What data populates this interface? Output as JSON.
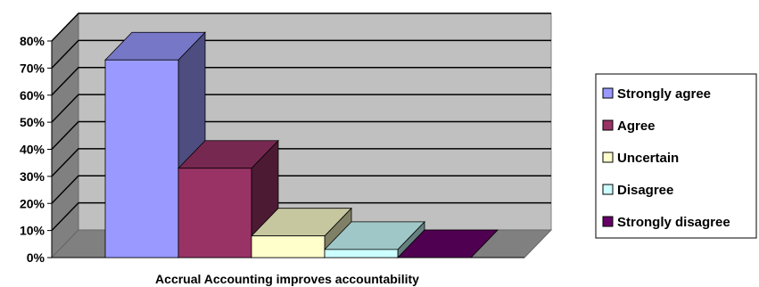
{
  "chart_data": {
    "type": "bar",
    "three_d": true,
    "xlabel": "Accrual Accounting improves accountability",
    "ylabel": "",
    "ylim": [
      0,
      80
    ],
    "yticks": [
      "0%",
      "10%",
      "20%",
      "30%",
      "40%",
      "50%",
      "60%",
      "70%",
      "80%"
    ],
    "grid": true,
    "legend_position": "right",
    "series": [
      {
        "name": "Strongly agree",
        "value": 73,
        "color": "#9999FF"
      },
      {
        "name": "Agree",
        "value": 33,
        "color": "#993366"
      },
      {
        "name": "Uncertain",
        "value": 8,
        "color": "#FFFFCC"
      },
      {
        "name": "Disagree",
        "value": 3,
        "color": "#CCFFFF"
      },
      {
        "name": "Strongly disagree",
        "value": 0,
        "color": "#660066"
      }
    ]
  }
}
